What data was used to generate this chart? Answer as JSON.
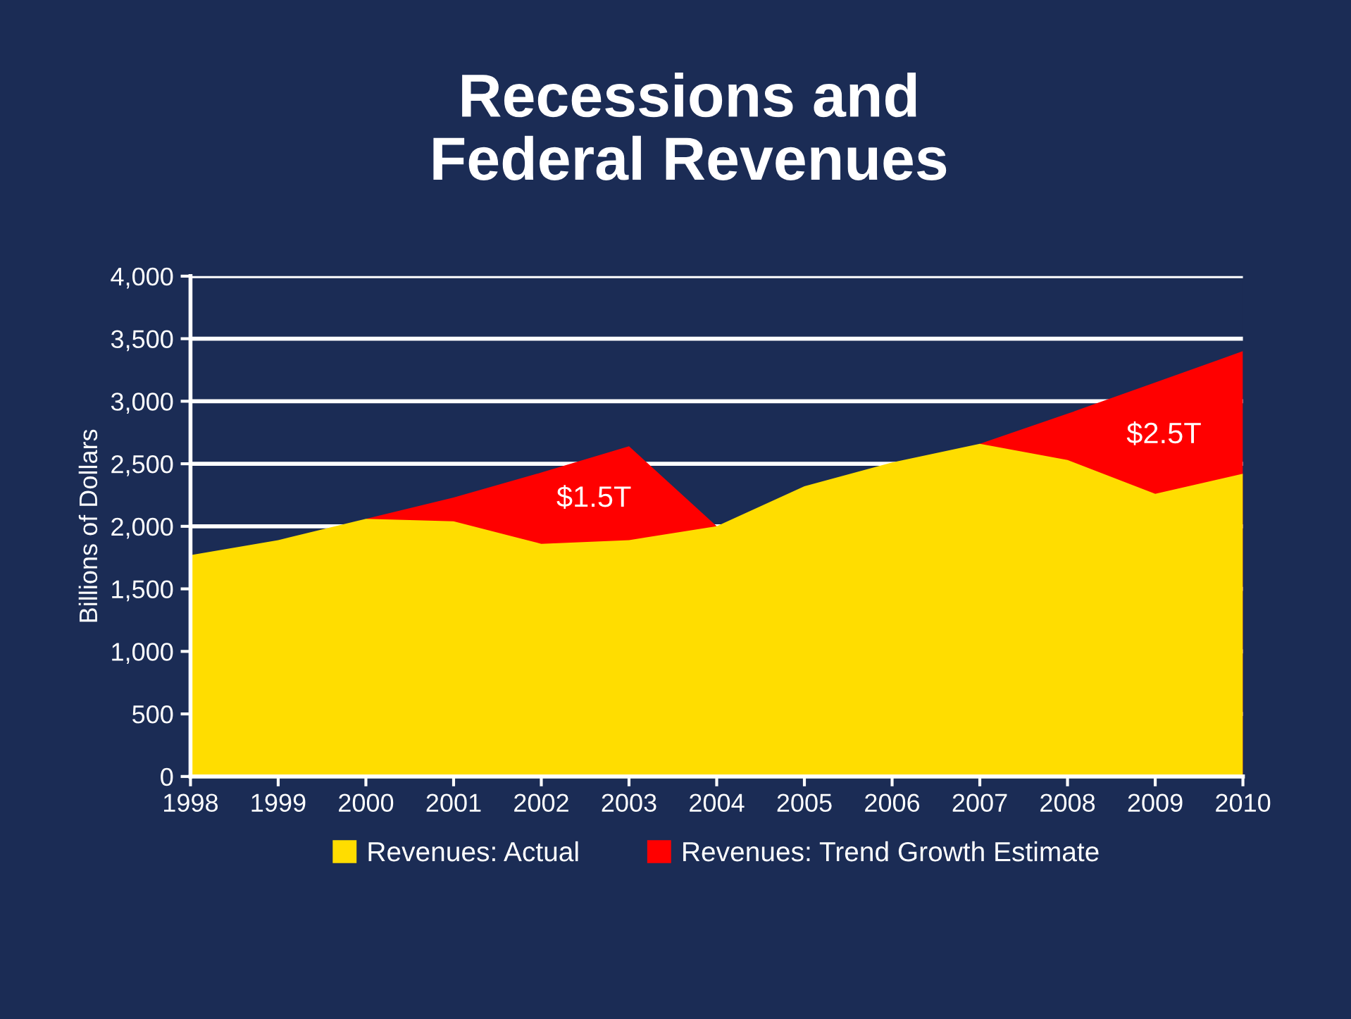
{
  "chart_data": {
    "type": "area",
    "title": "Recessions and\nFederal Revenues",
    "ylabel": "Billions of Dollars",
    "x": [
      1998,
      1999,
      2000,
      2001,
      2002,
      2003,
      2004,
      2005,
      2006,
      2007,
      2008,
      2009,
      2010
    ],
    "series": [
      {
        "name": "Revenues: Actual",
        "color": "#ffdd00",
        "values": [
          1770,
          1890,
          2060,
          2040,
          1860,
          1890,
          2000,
          2320,
          2510,
          2660,
          2530,
          2260,
          2420
        ]
      },
      {
        "name": "Revenues: Trend Growth Estimate",
        "color": "#ff0000",
        "values": [
          null,
          null,
          2060,
          2230,
          2430,
          2640,
          2000,
          null,
          null,
          2660,
          2900,
          3150,
          3400
        ]
      }
    ],
    "xlim": [
      1998,
      2010
    ],
    "xticks": [
      1998,
      1999,
      2000,
      2001,
      2002,
      2003,
      2004,
      2005,
      2006,
      2007,
      2008,
      2009,
      2010
    ],
    "ylim": [
      0,
      4000
    ],
    "yticks": [
      {
        "value": 0,
        "label": "0"
      },
      {
        "value": 500,
        "label": "500"
      },
      {
        "value": 1000,
        "label": "1,000"
      },
      {
        "value": 1500,
        "label": "1,500"
      },
      {
        "value": 2000,
        "label": "2,000"
      },
      {
        "value": 2500,
        "label": "2,500"
      },
      {
        "value": 3000,
        "label": "3,000"
      },
      {
        "value": 3500,
        "label": "3,500"
      },
      {
        "value": 4000,
        "label": "4,000"
      }
    ],
    "annotations": [
      "$1.5T",
      "$2.5T"
    ],
    "grid": "y",
    "legend": "bottom"
  }
}
